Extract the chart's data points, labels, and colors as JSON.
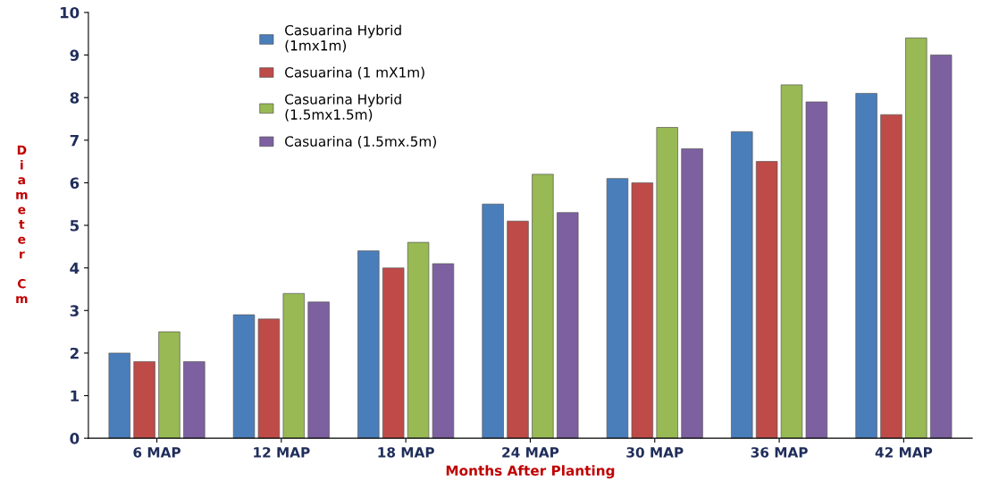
{
  "chart_data": {
    "type": "bar",
    "xlabel": "Months After Planting",
    "ylabel": "Diameter Cm",
    "categories": [
      "6 MAP",
      "12 MAP",
      "18 MAP",
      "24 MAP",
      "30 MAP",
      "36 MAP",
      "42 MAP"
    ],
    "series": [
      {
        "name": "Casuarina Hybrid\n(1mx1m)",
        "color": "#4a7ebb",
        "values": [
          2.0,
          2.9,
          4.4,
          5.5,
          6.1,
          7.2,
          8.1
        ]
      },
      {
        "name": "Casuarina (1 mX1m)",
        "color": "#be4b48",
        "values": [
          1.8,
          2.8,
          4.0,
          5.1,
          6.0,
          6.5,
          7.6
        ]
      },
      {
        "name": "Casuarina Hybrid\n(1.5mx1.5m)",
        "color": "#98b954",
        "values": [
          2.5,
          3.4,
          4.6,
          6.2,
          7.3,
          8.3,
          9.4
        ]
      },
      {
        "name": "Casuarina (1.5mx.5m)",
        "color": "#7d60a0",
        "values": [
          1.8,
          3.2,
          4.1,
          5.3,
          6.8,
          7.9,
          9.0
        ]
      }
    ],
    "ylim": [
      0,
      10
    ],
    "yticks": [
      0,
      1,
      2,
      3,
      4,
      5,
      6,
      7,
      8,
      9,
      10
    ],
    "grid": false,
    "legend": "top left"
  }
}
